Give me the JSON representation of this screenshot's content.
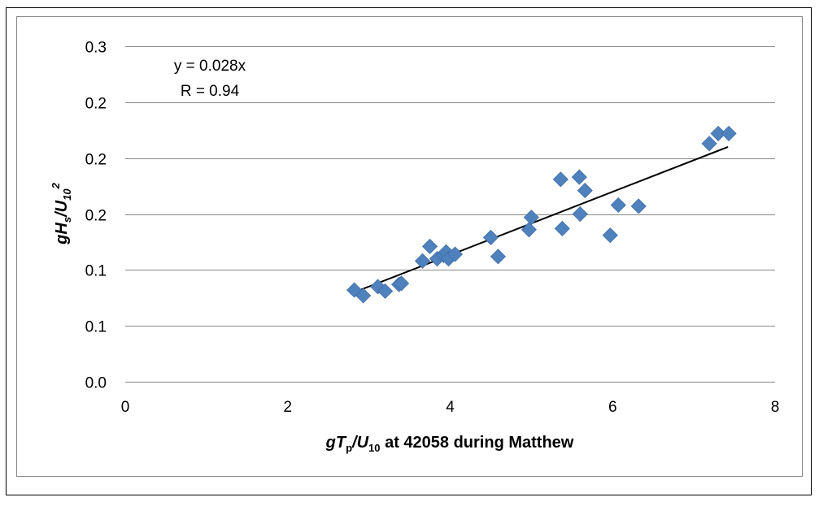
{
  "chart_data": {
    "type": "scatter",
    "title": "",
    "xlabel": {
      "g": "g",
      "T": "T",
      "p": "p",
      "slash": "/",
      "U": "U",
      "sub": "10",
      "rest": " at 42058 during Matthew"
    },
    "ylabel": {
      "g": "g",
      "H": "H",
      "s": "s",
      "slash": "/",
      "U": "U",
      "sub": "10",
      "sup": "2"
    },
    "xlim": [
      0,
      8
    ],
    "ylim": [
      0,
      0.3
    ],
    "x_ticks": [
      0,
      2,
      4,
      6,
      8
    ],
    "x_tick_labels": [
      "0",
      "2",
      "4",
      "6",
      "8"
    ],
    "y_ticks": [
      0,
      0.05,
      0.1,
      0.15,
      0.2,
      0.25,
      0.3
    ],
    "y_tick_labels": [
      "0.0",
      "0.1",
      "0.1",
      "0.2",
      "0.2",
      "0.2",
      "0.3"
    ],
    "grid": {
      "y": true,
      "x": false
    },
    "marker_color": "#4F81BD",
    "trendline_color": "#000000",
    "annotations": [
      "y = 0.028x",
      "R = 0.94"
    ],
    "trendline": {
      "x_start": 2.82,
      "x_end": 7.42,
      "y_start": 0.08,
      "y_end": 0.21
    },
    "points": [
      {
        "x": 2.82,
        "y": 0.082
      },
      {
        "x": 2.93,
        "y": 0.077
      },
      {
        "x": 3.11,
        "y": 0.085
      },
      {
        "x": 3.2,
        "y": 0.081
      },
      {
        "x": 3.37,
        "y": 0.087
      },
      {
        "x": 3.4,
        "y": 0.088
      },
      {
        "x": 3.66,
        "y": 0.108
      },
      {
        "x": 3.75,
        "y": 0.121
      },
      {
        "x": 3.84,
        "y": 0.11
      },
      {
        "x": 3.92,
        "y": 0.113
      },
      {
        "x": 3.95,
        "y": 0.116
      },
      {
        "x": 3.98,
        "y": 0.11
      },
      {
        "x": 4.06,
        "y": 0.114
      },
      {
        "x": 4.5,
        "y": 0.129
      },
      {
        "x": 4.59,
        "y": 0.112
      },
      {
        "x": 4.97,
        "y": 0.136
      },
      {
        "x": 5.0,
        "y": 0.147
      },
      {
        "x": 5.36,
        "y": 0.181
      },
      {
        "x": 5.38,
        "y": 0.137
      },
      {
        "x": 5.59,
        "y": 0.183
      },
      {
        "x": 5.6,
        "y": 0.15
      },
      {
        "x": 5.66,
        "y": 0.171
      },
      {
        "x": 5.97,
        "y": 0.131
      },
      {
        "x": 6.07,
        "y": 0.158
      },
      {
        "x": 6.32,
        "y": 0.157
      },
      {
        "x": 7.19,
        "y": 0.213
      },
      {
        "x": 7.3,
        "y": 0.222
      },
      {
        "x": 7.43,
        "y": 0.222
      }
    ]
  }
}
